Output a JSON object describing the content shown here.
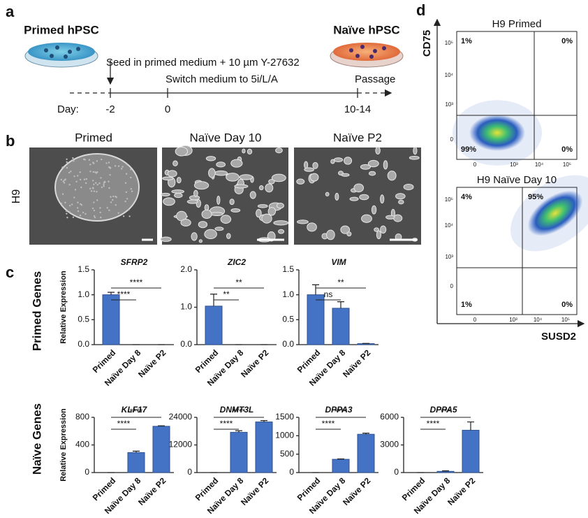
{
  "panel_labels": [
    "a",
    "b",
    "c",
    "d"
  ],
  "protocol": {
    "start": "Primed hPSC",
    "end": "Naïve hPSC",
    "step1": "Seed in primed medium + 10 µm Y-27632",
    "step2": "Switch medium to 5i/L/A",
    "step3": "Passage",
    "day_label": "Day:",
    "days": [
      "-2",
      "0",
      "10-14"
    ]
  },
  "images": {
    "row_label": "H9",
    "columns": [
      "Primed",
      "Naïve Day 10",
      "Naïve P2"
    ]
  },
  "qpcr": {
    "row_labels": [
      "Primed Genes",
      "Naïve Genes"
    ]
  },
  "chart_data": [
    {
      "type": "bar",
      "title": "SFRP2",
      "y_label": "Relative Expression",
      "categories": [
        "Primed",
        "Naïve Day 8",
        "Naïve P2"
      ],
      "values": [
        1.0,
        0,
        0
      ],
      "errors": [
        0.05,
        0,
        0
      ],
      "color": "#4472c4",
      "ylim": [
        0,
        1.5
      ],
      "yticks": [
        {
          "value": 0,
          "label": "0.0"
        },
        {
          "value": 0.5,
          "label": "0.5"
        },
        {
          "value": 1,
          "label": "1.0"
        },
        {
          "value": 1.5,
          "label": "1.5"
        }
      ],
      "significance": [
        "****",
        "****"
      ]
    },
    {
      "type": "bar",
      "title": "ZIC2",
      "categories": [
        "Primed",
        "Naïve Day 8",
        "Naïve P2"
      ],
      "values": [
        1.03,
        0,
        0
      ],
      "errors": [
        0.32,
        0,
        0
      ],
      "color": "#4472c4",
      "ylim": [
        0,
        2
      ],
      "yticks": [
        {
          "value": 0,
          "label": "0.0"
        },
        {
          "value": 1,
          "label": "1.0"
        },
        {
          "value": 2,
          "label": "2.0"
        }
      ],
      "significance": [
        "**",
        "**"
      ]
    },
    {
      "type": "bar",
      "title": "VIM",
      "categories": [
        "Primed",
        "Naïve Day 8",
        "Naïve P2"
      ],
      "values": [
        1.0,
        0.73,
        0.02
      ],
      "errors": [
        0.2,
        0.13,
        0.005
      ],
      "color": "#4472c4",
      "ylim": [
        0,
        1.5
      ],
      "yticks": [
        {
          "value": 0,
          "label": "0.0"
        },
        {
          "value": 0.5,
          "label": "0.5"
        },
        {
          "value": 1,
          "label": "1.0"
        },
        {
          "value": 1.5,
          "label": "1.5"
        }
      ],
      "significance": [
        "ns",
        "**"
      ]
    },
    {
      "type": "bar",
      "title": "KLF17",
      "y_label": "Relative Expression",
      "categories": [
        "Primed",
        "Naïve Day 8",
        "Naïve P2"
      ],
      "values": [
        0,
        290,
        670
      ],
      "errors": [
        0,
        20,
        8
      ],
      "color": "#4472c4",
      "ylim": [
        0,
        800
      ],
      "yticks": [
        0,
        400,
        800
      ],
      "significance": [
        "****",
        "****"
      ]
    },
    {
      "type": "bar",
      "title": "DNMT3L",
      "categories": [
        "Primed",
        "Naïve Day 8",
        "Naïve P2"
      ],
      "values": [
        0,
        17500,
        22000
      ],
      "errors": [
        0,
        700,
        600
      ],
      "color": "#4472c4",
      "ylim": [
        0,
        24000
      ],
      "yticks": [
        0,
        12000,
        24000
      ],
      "significance": [
        "****",
        "****"
      ]
    },
    {
      "type": "bar",
      "title": "DPPA3",
      "categories": [
        "Primed",
        "Naïve Day 8",
        "Naïve P2"
      ],
      "values": [
        0,
        360,
        1040
      ],
      "errors": [
        0,
        10,
        30
      ],
      "color": "#4472c4",
      "ylim": [
        0,
        1500
      ],
      "yticks": [
        0,
        500,
        1000,
        1500
      ],
      "significance": [
        "****",
        "****"
      ]
    },
    {
      "type": "bar",
      "title": "DPPA5",
      "categories": [
        "Primed",
        "Naïve Day 8",
        "Naïve P2"
      ],
      "values": [
        0,
        130,
        4600
      ],
      "errors": [
        0,
        60,
        900
      ],
      "color": "#4472c4",
      "ylim": [
        0,
        6000
      ],
      "yticks": [
        0,
        3000,
        6000
      ],
      "significance": [
        "****",
        "***"
      ]
    }
  ],
  "flow": {
    "y_axis": "CD75",
    "x_axis": "SUSD2",
    "plots": [
      {
        "title": "H9 Primed",
        "quadrants": [
          "1%",
          "0%",
          "99%",
          "0%"
        ],
        "yticks": [
          "10⁵",
          "10⁴",
          "10³",
          "0"
        ],
        "xticks": [
          "0",
          "10³",
          "10⁴",
          "10⁵"
        ]
      },
      {
        "title": "H9 Naïve Day 10",
        "quadrants": [
          "4%",
          "95%",
          "1%",
          "0%"
        ],
        "yticks": [
          "10⁵",
          "10⁴",
          "10³",
          "0"
        ],
        "xticks": [
          "0",
          "10³",
          "10⁴",
          "10⁵"
        ]
      }
    ]
  }
}
